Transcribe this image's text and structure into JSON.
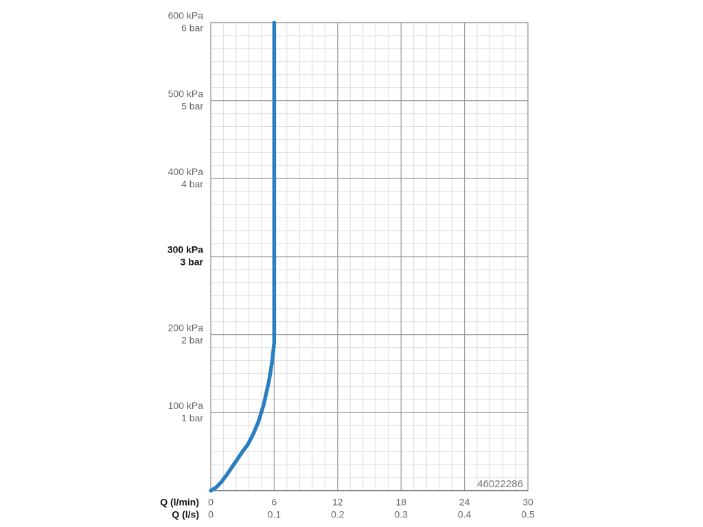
{
  "chart_data": {
    "type": "line",
    "x_label": "Q (l/min)",
    "x2_label": "Q (l/s)",
    "x": [
      0,
      0.5,
      1,
      1.5,
      2,
      2.5,
      3,
      3.5,
      4,
      4.5,
      5,
      5.5,
      5.8,
      6,
      6
    ],
    "series": [
      {
        "color": "#2a7fc1",
        "values": [
          0,
          4,
          11,
          20,
          30,
          40,
          50,
          59,
          72,
          88,
          110,
          140,
          165,
          190,
          600
        ]
      }
    ],
    "xlim": [
      0,
      30
    ],
    "xticks": [
      0,
      6,
      12,
      18,
      24,
      30
    ],
    "x2lim": [
      0,
      0.5
    ],
    "x2ticks": [
      0,
      0.1,
      0.2,
      0.3,
      0.4,
      0.5
    ],
    "ylim": [
      0,
      600
    ],
    "yticks": [
      {
        "value": 100,
        "label": "100 kPa"
      },
      {
        "value": 200,
        "label": "200 kPa"
      },
      {
        "value": 300,
        "label": "300 kPa",
        "bold": true
      },
      {
        "value": 400,
        "label": "400 kPa"
      },
      {
        "value": 500,
        "label": "500 kPa"
      },
      {
        "value": 600,
        "label": "600 kPa"
      }
    ],
    "y2lim": [
      0,
      6
    ],
    "y2ticks": [
      {
        "value": 1,
        "label": "1 bar"
      },
      {
        "value": 2,
        "label": "2 bar"
      },
      {
        "value": 3,
        "label": "3 bar",
        "bold": true
      },
      {
        "value": 4,
        "label": "4 bar"
      },
      {
        "value": 5,
        "label": "5 bar"
      },
      {
        "value": 6,
        "label": "6 bar"
      }
    ],
    "grid": true,
    "code": "46022286"
  }
}
